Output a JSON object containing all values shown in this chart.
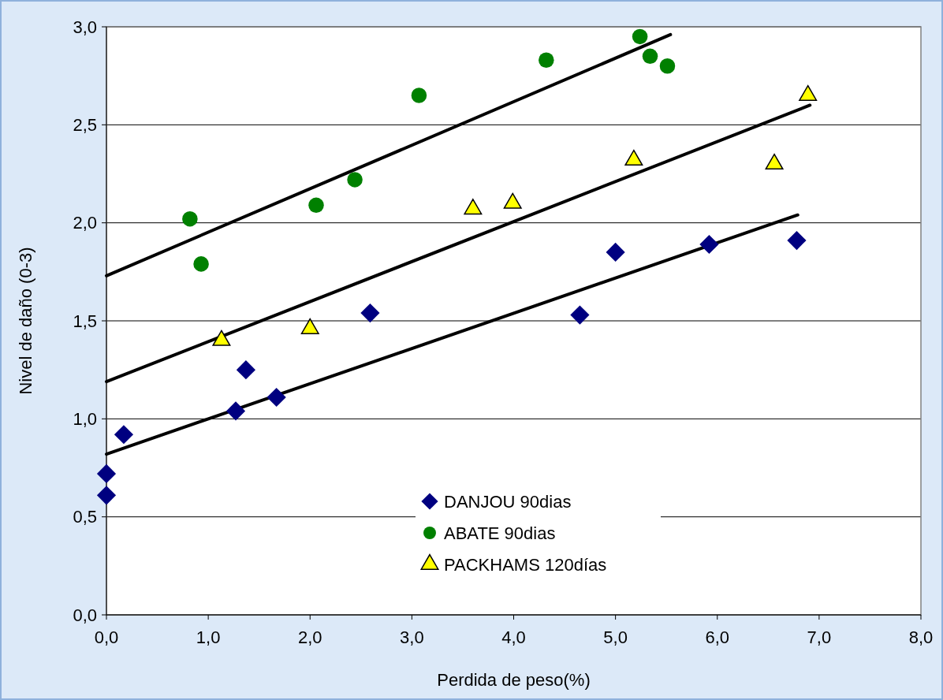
{
  "chart_data": {
    "type": "scatter",
    "xlabel": "Perdida de peso(%)",
    "ylabel": "Nivel de daño (0-3)",
    "xlim": [
      0,
      8
    ],
    "ylim": [
      0,
      3
    ],
    "xticks": [
      {
        "value": 0,
        "label": "0,0"
      },
      {
        "value": 1,
        "label": "1,0"
      },
      {
        "value": 2,
        "label": "2,0"
      },
      {
        "value": 3,
        "label": "3,0"
      },
      {
        "value": 4,
        "label": "4,0"
      },
      {
        "value": 5,
        "label": "5,0"
      },
      {
        "value": 6,
        "label": "6,0"
      },
      {
        "value": 7,
        "label": "7,0"
      },
      {
        "value": 8,
        "label": "8,0"
      }
    ],
    "yticks": [
      {
        "value": 0,
        "label": "0,0"
      },
      {
        "value": 0.5,
        "label": "0,5"
      },
      {
        "value": 1,
        "label": "1,0"
      },
      {
        "value": 1.5,
        "label": "1,5"
      },
      {
        "value": 2,
        "label": "2,0"
      },
      {
        "value": 2.5,
        "label": "2,5"
      },
      {
        "value": 3,
        "label": "3,0"
      }
    ],
    "grid": "y",
    "legend": "bottom",
    "series": [
      {
        "name": "DANJOU 90dias",
        "marker": "diamond",
        "color": "#000080",
        "x": [
          0,
          0,
          0.17,
          1.27,
          1.37,
          1.67,
          2.59,
          4.65,
          5.0,
          5.92,
          6.78
        ],
        "values": [
          0.61,
          0.72,
          0.92,
          1.04,
          1.25,
          1.11,
          1.54,
          1.53,
          1.85,
          1.89,
          1.91
        ]
      },
      {
        "name": "ABATE 90dias",
        "marker": "circle",
        "color": "#008000",
        "x": [
          0.82,
          0.93,
          2.06,
          2.44,
          3.07,
          4.32,
          5.24,
          5.34,
          5.51
        ],
        "values": [
          2.02,
          1.79,
          2.09,
          2.22,
          2.65,
          2.83,
          2.95,
          2.85,
          2.8
        ]
      },
      {
        "name": "PACKHAMS 120días",
        "marker": "triangle",
        "color": "#ffff00",
        "x": [
          1.13,
          2.0,
          3.6,
          3.99,
          5.18,
          6.56,
          6.89
        ],
        "values": [
          1.4,
          1.46,
          2.07,
          2.1,
          2.32,
          2.3,
          2.65
        ]
      },
      {
        "type": "line",
        "color": "#000000",
        "x": [
          0,
          6.79
        ],
        "values": [
          0.82,
          2.04
        ]
      },
      {
        "type": "line",
        "color": "#000000",
        "x": [
          0,
          5.54
        ],
        "values": [
          1.73,
          2.96
        ]
      },
      {
        "type": "line",
        "color": "#000000",
        "x": [
          0,
          6.91
        ],
        "values": [
          1.19,
          2.6
        ]
      }
    ]
  }
}
